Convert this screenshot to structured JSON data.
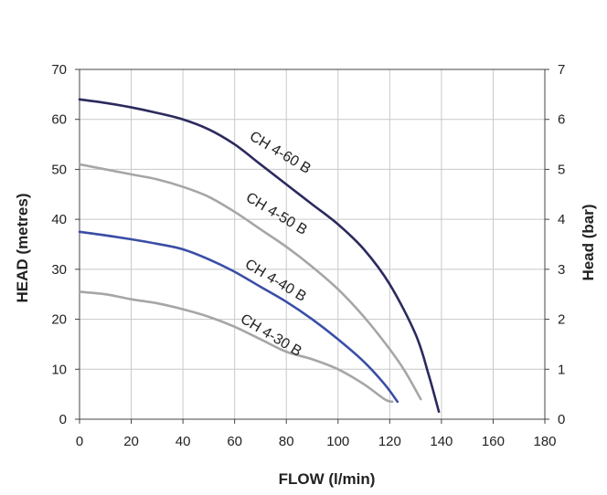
{
  "chart_data": {
    "type": "line",
    "xlabel": "FLOW (l/min)",
    "ylabel": "HEAD (metres)",
    "y2label": "Head (bar)",
    "xlim": [
      0,
      180
    ],
    "ylim": [
      0,
      70
    ],
    "y2lim": [
      0,
      7
    ],
    "xticks": [
      0,
      20,
      40,
      60,
      80,
      100,
      120,
      140,
      160,
      180
    ],
    "yticks": [
      0,
      10,
      20,
      30,
      40,
      50,
      60,
      70
    ],
    "y2ticks": [
      0,
      1,
      2,
      3,
      4,
      5,
      6,
      7
    ],
    "grid": true,
    "series": [
      {
        "name": "CH 4-60 B",
        "color": "#2b2a5e",
        "points": [
          [
            0,
            64
          ],
          [
            10,
            63.3
          ],
          [
            20,
            62.4
          ],
          [
            30,
            61.3
          ],
          [
            40,
            60
          ],
          [
            50,
            58
          ],
          [
            60,
            55
          ],
          [
            70,
            51
          ],
          [
            80,
            47
          ],
          [
            90,
            43
          ],
          [
            100,
            39
          ],
          [
            110,
            34
          ],
          [
            120,
            27
          ],
          [
            130,
            17
          ],
          [
            135,
            9
          ],
          [
            139,
            1.5
          ]
        ]
      },
      {
        "name": "CH 4-50 B",
        "color": "#a6a6a6",
        "points": [
          [
            0,
            51
          ],
          [
            10,
            50
          ],
          [
            20,
            49
          ],
          [
            30,
            48
          ],
          [
            40,
            46.5
          ],
          [
            50,
            44.5
          ],
          [
            60,
            41.5
          ],
          [
            70,
            38
          ],
          [
            80,
            34.5
          ],
          [
            90,
            30.5
          ],
          [
            100,
            26
          ],
          [
            110,
            20.5
          ],
          [
            120,
            14
          ],
          [
            126,
            9.5
          ],
          [
            132,
            4
          ]
        ]
      },
      {
        "name": "CH 4-40 B",
        "color": "#3a4ea6",
        "points": [
          [
            0,
            37.5
          ],
          [
            10,
            36.8
          ],
          [
            20,
            36
          ],
          [
            30,
            35.1
          ],
          [
            40,
            34
          ],
          [
            50,
            32
          ],
          [
            60,
            29.5
          ],
          [
            70,
            26.5
          ],
          [
            80,
            23.5
          ],
          [
            90,
            20
          ],
          [
            100,
            16
          ],
          [
            110,
            11.5
          ],
          [
            118,
            7
          ],
          [
            123,
            3.5
          ]
        ]
      },
      {
        "name": "CH 4-30 B",
        "color": "#a6a6a6",
        "points": [
          [
            0,
            25.5
          ],
          [
            10,
            25
          ],
          [
            20,
            24
          ],
          [
            30,
            23.2
          ],
          [
            40,
            22
          ],
          [
            50,
            20.5
          ],
          [
            60,
            18.5
          ],
          [
            70,
            16
          ],
          [
            80,
            13.5
          ],
          [
            90,
            12
          ],
          [
            100,
            10
          ],
          [
            110,
            7
          ],
          [
            118,
            4
          ],
          [
            121,
            3.5
          ]
        ]
      }
    ],
    "labels": [
      {
        "text": "CH 4-60 B",
        "series": 0
      },
      {
        "text": "CH 4-50 B",
        "series": 1
      },
      {
        "text": "CH 4-40 B",
        "series": 2
      },
      {
        "text": "CH 4-30 B",
        "series": 3
      }
    ]
  }
}
